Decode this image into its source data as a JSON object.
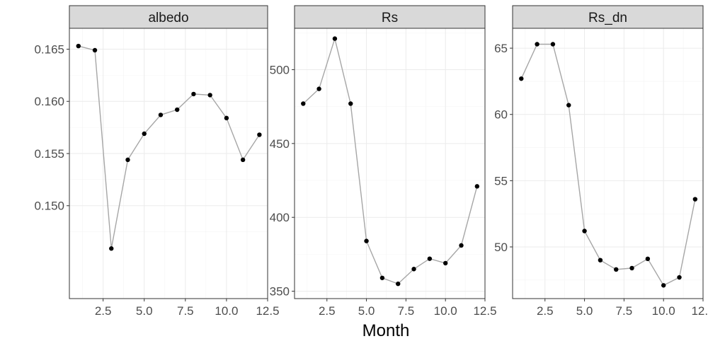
{
  "chart_data": {
    "type": "line",
    "xlabel": "Month",
    "colors": {
      "line": "#a6a6a6",
      "point": "#000000",
      "strip": "#d9d9d9"
    },
    "x": [
      1,
      2,
      3,
      4,
      5,
      6,
      7,
      8,
      9,
      10,
      11,
      12
    ],
    "xlim": [
      0.45,
      12.5
    ],
    "xticks": [
      2.5,
      5.0,
      7.5,
      10.0,
      12.5
    ],
    "xtick_labels": [
      "2.5",
      "5.0",
      "7.5",
      "10.0",
      "12.5"
    ],
    "grid": true,
    "panels": [
      {
        "title": "albedo",
        "values": [
          0.1653,
          0.1649,
          0.1459,
          0.1544,
          0.1569,
          0.1587,
          0.1592,
          0.1607,
          0.1606,
          0.1584,
          0.1544,
          0.1568
        ],
        "ylim": [
          0.1411,
          0.167
        ],
        "yticks": [
          0.15,
          0.155,
          0.16,
          0.165
        ],
        "ytick_labels": [
          "0.150",
          "0.155",
          "0.160",
          "0.165"
        ]
      },
      {
        "title": "Rs",
        "values": [
          477,
          487,
          521,
          477,
          384,
          359,
          355,
          365,
          372,
          369,
          381,
          421
        ],
        "ylim": [
          345,
          528
        ],
        "yticks": [
          350,
          400,
          450,
          500
        ],
        "ytick_labels": [
          "350",
          "400",
          "450",
          "500"
        ]
      },
      {
        "title": "Rs_dn",
        "values": [
          62.7,
          65.3,
          65.3,
          60.7,
          51.2,
          49.0,
          48.3,
          48.4,
          49.1,
          47.1,
          47.7,
          53.6
        ],
        "ylim": [
          46.1,
          66.5
        ],
        "yticks": [
          50,
          55,
          60,
          65
        ],
        "ytick_labels": [
          "50",
          "55",
          "60",
          "65"
        ]
      }
    ]
  }
}
